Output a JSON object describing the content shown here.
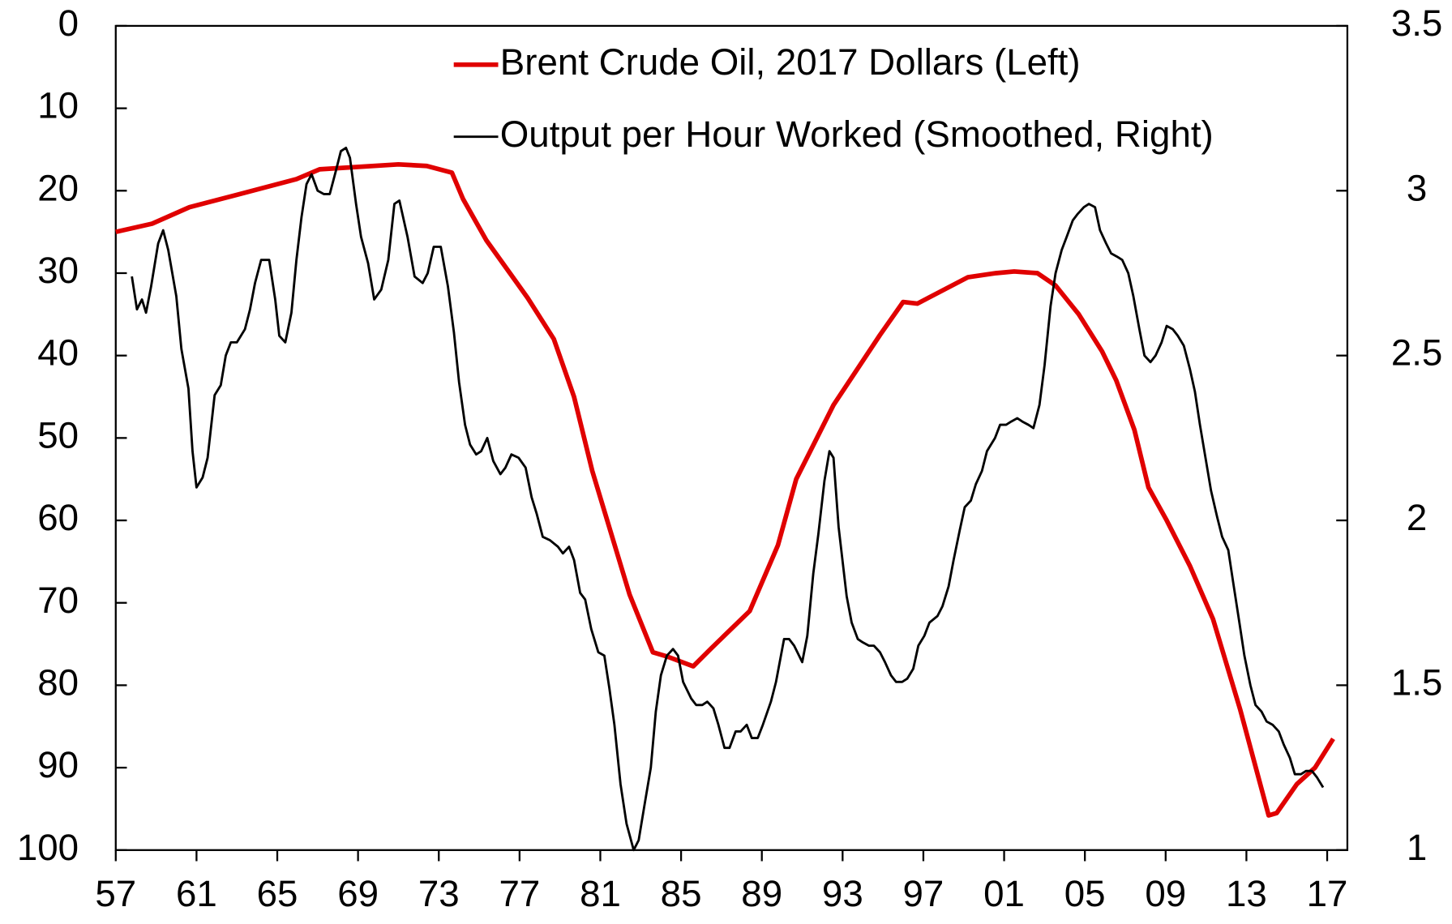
{
  "chart_data": {
    "type": "line",
    "xlim": [
      1957,
      2018
    ],
    "xticks": [
      {
        "value": 1957,
        "label": "57"
      },
      {
        "value": 1961,
        "label": "61"
      },
      {
        "value": 1965,
        "label": "65"
      },
      {
        "value": 1969,
        "label": "69"
      },
      {
        "value": 1973,
        "label": "73"
      },
      {
        "value": 1977,
        "label": "77"
      },
      {
        "value": 1981,
        "label": "81"
      },
      {
        "value": 1985,
        "label": "85"
      },
      {
        "value": 1989,
        "label": "89"
      },
      {
        "value": 1993,
        "label": "93"
      },
      {
        "value": 1997,
        "label": "97"
      },
      {
        "value": 2001,
        "label": "01"
      },
      {
        "value": 2005,
        "label": "05"
      },
      {
        "value": 2009,
        "label": "09"
      },
      {
        "value": 2013,
        "label": "13"
      },
      {
        "value": 2017,
        "label": "17"
      }
    ],
    "ylim": [
      100,
      0
    ],
    "yticks": [
      0,
      10,
      20,
      30,
      40,
      50,
      60,
      70,
      80,
      90,
      100
    ],
    "y2lim": [
      1,
      3.5
    ],
    "y2ticks": [
      1,
      1.5,
      2,
      2.5,
      3,
      3.5
    ],
    "legend": "top-right",
    "series": [
      {
        "name": "Brent Crude Oil, 2017 Dollars (Left)",
        "color": "#e00000",
        "axis": "y",
        "x": [
          1957,
          1958.8,
          1960.65,
          1963,
          1965.95,
          1967.1,
          1971,
          1972.4,
          1973.65,
          1974.2,
          1975.35,
          1977.4,
          1978.7,
          1979.7,
          1980.6,
          1982.45,
          1983.6,
          1984.3,
          1985.6,
          1986.5,
          1988.4,
          1989.8,
          1990.7,
          1992.55,
          1994.85,
          1996,
          1996.7,
          1999.2,
          2000.6,
          2001.5,
          2002.65,
          2003.55,
          2004.7,
          2005.85,
          2006.55,
          2007.45,
          2008.15,
          2009.05,
          2010.2,
          2011.35,
          2012.7,
          2014.1,
          2014.5,
          2015.5,
          2016.4,
          2017.3
        ],
        "values": [
          25,
          24,
          22,
          20.5,
          18.6,
          17.4,
          16.8,
          17,
          17.8,
          21,
          26,
          33,
          38,
          45,
          54,
          69,
          76,
          76.5,
          77.7,
          75.5,
          71,
          63,
          55,
          46,
          37.5,
          33.5,
          33.7,
          30.5,
          30,
          29.8,
          30,
          31.5,
          35,
          39.5,
          43,
          49,
          56,
          60,
          65.5,
          72,
          83,
          95.8,
          95.5,
          92,
          90,
          86.5
        ]
      },
      {
        "name": "Output per Hour Worked (Smoothed, Right)",
        "color": "#000000",
        "axis": "y2",
        "x": [
          1957.8,
          1958.05,
          1958.3,
          1958.5,
          1958.75,
          1959.1,
          1959.35,
          1959.6,
          1960,
          1960.25,
          1960.6,
          1960.8,
          1961,
          1961.3,
          1961.55,
          1961.9,
          1962.2,
          1962.45,
          1962.7,
          1963,
          1963.4,
          1963.65,
          1963.9,
          1964.2,
          1964.6,
          1964.9,
          1965.1,
          1965.4,
          1965.7,
          1965.95,
          1966.2,
          1966.45,
          1966.7,
          1967,
          1967.3,
          1967.6,
          1967.9,
          1968.15,
          1968.4,
          1968.6,
          1968.9,
          1969.15,
          1969.5,
          1969.8,
          1970.15,
          1970.5,
          1970.8,
          1971.05,
          1971.45,
          1971.8,
          1972.2,
          1972.45,
          1972.75,
          1973.1,
          1973.45,
          1973.75,
          1974,
          1974.3,
          1974.55,
          1974.85,
          1975.1,
          1975.4,
          1975.7,
          1976.05,
          1976.3,
          1976.6,
          1976.95,
          1977.3,
          1977.6,
          1977.85,
          1978.15,
          1978.5,
          1978.9,
          1979.15,
          1979.45,
          1979.7,
          1980,
          1980.25,
          1980.55,
          1980.9,
          1981.2,
          1981.45,
          1981.7,
          1982,
          1982.3,
          1982.65,
          1982.9,
          1983.2,
          1983.5,
          1983.75,
          1984,
          1984.3,
          1984.6,
          1984.85,
          1985.1,
          1985.5,
          1985.75,
          1986.05,
          1986.3,
          1986.6,
          1986.85,
          1987.15,
          1987.4,
          1987.7,
          1987.95,
          1988.25,
          1988.5,
          1988.8,
          1989.05,
          1989.45,
          1989.7,
          1990.1,
          1990.35,
          1990.6,
          1991,
          1991.25,
          1991.55,
          1991.8,
          1992.1,
          1992.35,
          1992.55,
          1992.8,
          1993.2,
          1993.45,
          1993.75,
          1994,
          1994.3,
          1994.55,
          1994.85,
          1995.1,
          1995.4,
          1995.65,
          1995.95,
          1996.2,
          1996.5,
          1996.75,
          1997.05,
          1997.3,
          1997.7,
          1997.95,
          1998.25,
          1998.5,
          1998.8,
          1999.05,
          1999.35,
          1999.6,
          1999.9,
          2000.15,
          2000.55,
          2000.8,
          2001.1,
          2001.35,
          2001.65,
          2001.9,
          2002.2,
          2002.45,
          2002.75,
          2003,
          2003.3,
          2003.55,
          2003.85,
          2004.1,
          2004.4,
          2004.65,
          2004.95,
          2005.2,
          2005.5,
          2005.75,
          2006.05,
          2006.3,
          2006.6,
          2006.85,
          2007.15,
          2007.4,
          2007.7,
          2007.95,
          2008.25,
          2008.5,
          2008.8,
          2009.05,
          2009.35,
          2009.6,
          2009.9,
          2010.2,
          2010.45,
          2010.7,
          2011,
          2011.25,
          2011.55,
          2011.8,
          2012.1,
          2012.35,
          2012.65,
          2012.9,
          2013.2,
          2013.45,
          2013.75,
          2014,
          2014.3,
          2014.6,
          2014.85,
          2015.15,
          2015.4,
          2015.7,
          2015.95,
          2016.25,
          2016.5,
          2016.8
        ],
        "values": [
          2.74,
          2.64,
          2.67,
          2.63,
          2.71,
          2.84,
          2.88,
          2.82,
          2.68,
          2.52,
          2.4,
          2.21,
          2.1,
          2.13,
          2.19,
          2.38,
          2.41,
          2.5,
          2.54,
          2.54,
          2.58,
          2.64,
          2.72,
          2.79,
          2.79,
          2.67,
          2.56,
          2.54,
          2.63,
          2.79,
          2.92,
          3.02,
          3.05,
          3,
          2.99,
          2.99,
          3.06,
          3.12,
          3.13,
          3.1,
          2.96,
          2.86,
          2.78,
          2.67,
          2.7,
          2.79,
          2.96,
          2.97,
          2.86,
          2.74,
          2.72,
          2.75,
          2.83,
          2.83,
          2.71,
          2.57,
          2.42,
          2.29,
          2.23,
          2.2,
          2.21,
          2.25,
          2.18,
          2.14,
          2.16,
          2.2,
          2.19,
          2.16,
          2.07,
          2.02,
          1.95,
          1.94,
          1.92,
          1.9,
          1.92,
          1.88,
          1.78,
          1.76,
          1.67,
          1.6,
          1.59,
          1.49,
          1.38,
          1.2,
          1.08,
          1,
          1.03,
          1.14,
          1.25,
          1.42,
          1.53,
          1.59,
          1.61,
          1.59,
          1.51,
          1.46,
          1.44,
          1.44,
          1.45,
          1.43,
          1.38,
          1.31,
          1.31,
          1.36,
          1.36,
          1.38,
          1.34,
          1.34,
          1.38,
          1.45,
          1.51,
          1.64,
          1.64,
          1.62,
          1.57,
          1.65,
          1.84,
          1.96,
          2.12,
          2.21,
          2.19,
          1.98,
          1.77,
          1.69,
          1.64,
          1.63,
          1.62,
          1.62,
          1.6,
          1.57,
          1.53,
          1.51,
          1.51,
          1.52,
          1.55,
          1.62,
          1.65,
          1.69,
          1.71,
          1.74,
          1.8,
          1.88,
          1.97,
          2.04,
          2.06,
          2.11,
          2.15,
          2.21,
          2.25,
          2.29,
          2.29,
          2.3,
          2.31,
          2.3,
          2.29,
          2.28,
          2.35,
          2.47,
          2.65,
          2.75,
          2.82,
          2.86,
          2.91,
          2.93,
          2.95,
          2.96,
          2.95,
          2.88,
          2.84,
          2.81,
          2.8,
          2.79,
          2.75,
          2.68,
          2.58,
          2.5,
          2.48,
          2.5,
          2.54,
          2.59,
          2.58,
          2.56,
          2.53,
          2.46,
          2.39,
          2.29,
          2.18,
          2.09,
          2.01,
          1.95,
          1.91,
          1.81,
          1.69,
          1.59,
          1.5,
          1.44,
          1.42,
          1.39,
          1.38,
          1.36,
          1.32,
          1.28,
          1.23,
          1.23,
          1.24,
          1.24,
          1.22,
          1.19
        ]
      }
    ]
  }
}
